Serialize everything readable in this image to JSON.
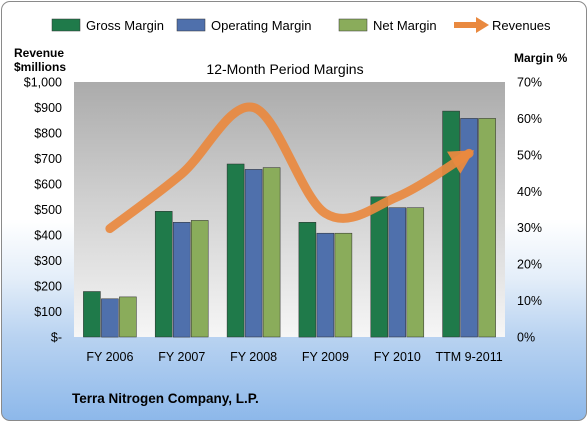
{
  "chart_data": {
    "type": "bar",
    "title": "12-Month Period Margins",
    "categories": [
      "FY 2006",
      "FY 2007",
      "FY 2008",
      "FY 2009",
      "FY 2010",
      "TTM 9-2011"
    ],
    "series": [
      {
        "name": "Gross Margin",
        "axis": "right",
        "color": "#1f7a4a",
        "values": [
          12.5,
          34.5,
          47.5,
          31.5,
          38.5,
          62.0
        ]
      },
      {
        "name": "Operating Margin",
        "axis": "right",
        "color": "#4f70ac",
        "values": [
          10.5,
          31.5,
          46.0,
          28.5,
          35.5,
          60.0
        ]
      },
      {
        "name": "Net Margin",
        "axis": "right",
        "color": "#8aac5b",
        "values": [
          11.0,
          32.0,
          46.5,
          28.5,
          35.5,
          60.0
        ]
      },
      {
        "name": "Revenues",
        "axis": "left",
        "type": "line",
        "color": "#e9893f",
        "values": [
          425,
          640,
          900,
          485,
          550,
          720
        ]
      }
    ],
    "left_axis": {
      "label_line1": "Revenue",
      "label_line2": "$millions",
      "range": [
        0,
        1000
      ],
      "ticks": [
        "$-",
        "$100",
        "$200",
        "$300",
        "$400",
        "$500",
        "$600",
        "$700",
        "$800",
        "$900",
        "$1,000"
      ]
    },
    "right_axis": {
      "label": "Margin %",
      "range": [
        0,
        70
      ],
      "ticks": [
        "0%",
        "10%",
        "20%",
        "30%",
        "40%",
        "50%",
        "60%",
        "70%"
      ]
    },
    "grid": false,
    "legend_position": "top"
  },
  "footer": {
    "company": "Terra Nitrogen Company, L.P."
  }
}
